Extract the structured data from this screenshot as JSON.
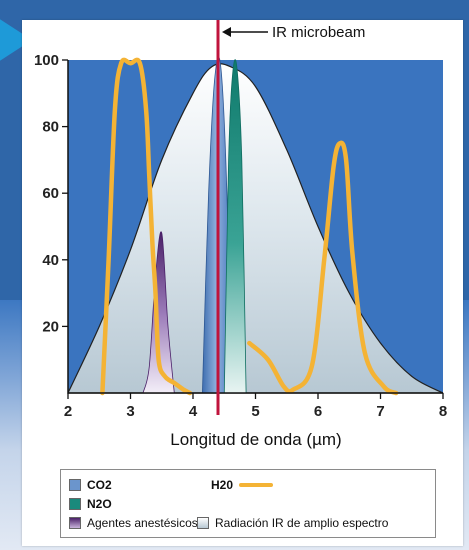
{
  "colors": {
    "plot_bg": "#3a74bf",
    "broadband": "#cdd9e2",
    "co2": "#6b95cc",
    "n2o": "#1a8a7c",
    "anesthetic": "#5c2f7c",
    "h2o": "#f4b335",
    "microbeam": "#c0143c"
  },
  "annotation": {
    "text": "IR microbeam",
    "icon": "arrow-left-icon"
  },
  "chart_data": {
    "type": "line",
    "xlabel": "Longitud de onda (µm)",
    "ylabel": "",
    "xlim": [
      2,
      8
    ],
    "ylim": [
      0,
      100
    ],
    "x_ticks": [
      "2",
      "3",
      "4",
      "5",
      "6",
      "7",
      "8"
    ],
    "y_ticks": [
      "20",
      "40",
      "60",
      "80",
      "100"
    ],
    "microbeam_x": 4.4,
    "series": [
      {
        "name": "Radiación IR de amplio espectro",
        "kind": "area",
        "x": [
          2.0,
          2.5,
          3.0,
          3.5,
          4.0,
          4.3,
          4.6,
          5.0,
          5.5,
          6.0,
          6.5,
          7.0,
          7.5,
          8.0
        ],
        "y": [
          0,
          20,
          43,
          70,
          90,
          98,
          98,
          92,
          73,
          50,
          30,
          15,
          5,
          0
        ]
      },
      {
        "name": "Agentes anestésicos",
        "kind": "peak",
        "x": [
          3.2,
          3.3,
          3.4,
          3.5,
          3.6,
          3.7
        ],
        "y": [
          0,
          8,
          35,
          48,
          20,
          0
        ]
      },
      {
        "name": "CO2",
        "kind": "peak",
        "x": [
          4.15,
          4.25,
          4.35,
          4.45,
          4.55,
          4.6
        ],
        "y": [
          0,
          60,
          95,
          97,
          55,
          0
        ]
      },
      {
        "name": "N2O",
        "kind": "peak",
        "x": [
          4.5,
          4.57,
          4.63,
          4.7,
          4.78,
          4.85
        ],
        "y": [
          0,
          70,
          95,
          98,
          70,
          0
        ]
      },
      {
        "name": "H2O",
        "kind": "line",
        "segments": [
          {
            "x": [
              2.55,
              2.65,
              2.75,
              2.85,
              3.0,
              3.15,
              3.25,
              3.3,
              3.35,
              3.4,
              3.45,
              3.55,
              3.7,
              3.85,
              3.95
            ],
            "y": [
              0,
              40,
              85,
              99,
              99,
              99,
              85,
              65,
              45,
              30,
              10,
              5,
              3,
              1,
              0
            ]
          },
          {
            "x": [
              4.9,
              5.2,
              5.45,
              5.6,
              5.9,
              6.1,
              6.25,
              6.35,
              6.45,
              6.55,
              6.75,
              7.05,
              7.25
            ],
            "y": [
              15,
              10,
              2,
              1,
              8,
              40,
              68,
              75,
              70,
              42,
              12,
              2,
              0
            ]
          }
        ]
      }
    ]
  },
  "legend": {
    "co2_label": "CO2",
    "n2o_label": "N2O",
    "h2o_label": "H20",
    "anesthetic_label": "Agentes anestésicos",
    "broadband_label": "Radiación IR de amplio espectro"
  }
}
